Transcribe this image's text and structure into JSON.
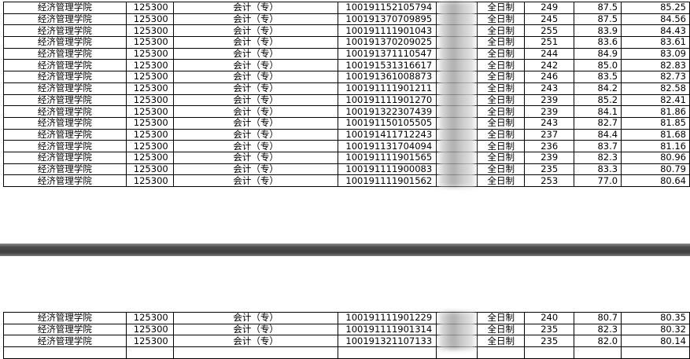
{
  "tables": [
    {
      "rows": [
        [
          "经济管理学院",
          "125300",
          "会计（专）",
          "100191152105794",
          "全日制",
          "249",
          "87.5",
          "85.25"
        ],
        [
          "经济管理学院",
          "125300",
          "会计（专）",
          "100191370709895",
          "全日制",
          "245",
          "87.5",
          "84.56"
        ],
        [
          "经济管理学院",
          "125300",
          "会计（专）",
          "100191111901043",
          "全日制",
          "255",
          "83.9",
          "84.43"
        ],
        [
          "经济管理学院",
          "125300",
          "会计（专）",
          "100191370209025",
          "全日制",
          "251",
          "83.6",
          "83.61"
        ],
        [
          "经济管理学院",
          "125300",
          "会计（专）",
          "100191371110547",
          "全日制",
          "244",
          "84.9",
          "83.09"
        ],
        [
          "经济管理学院",
          "125300",
          "会计（专）",
          "100191531316617",
          "全日制",
          "242",
          "85.0",
          "82.83"
        ],
        [
          "经济管理学院",
          "125300",
          "会计（专）",
          "100191361008873",
          "全日制",
          "246",
          "83.5",
          "82.73"
        ],
        [
          "经济管理学院",
          "125300",
          "会计（专）",
          "100191111901211",
          "全日制",
          "243",
          "84.2",
          "82.58"
        ],
        [
          "经济管理学院",
          "125300",
          "会计（专）",
          "100191111901270",
          "全日制",
          "239",
          "85.2",
          "82.41"
        ],
        [
          "经济管理学院",
          "125300",
          "会计（专）",
          "100191322307439",
          "全日制",
          "239",
          "84.1",
          "81.86"
        ],
        [
          "经济管理学院",
          "125300",
          "会计（专）",
          "100191150105505",
          "全日制",
          "243",
          "82.7",
          "81.85"
        ],
        [
          "经济管理学院",
          "125300",
          "会计（专）",
          "100191411712243",
          "全日制",
          "237",
          "84.4",
          "81.68"
        ],
        [
          "经济管理学院",
          "125300",
          "会计（专）",
          "100191131704094",
          "全日制",
          "236",
          "83.7",
          "81.16"
        ],
        [
          "经济管理学院",
          "125300",
          "会计（专）",
          "100191111901565",
          "全日制",
          "239",
          "82.3",
          "80.96"
        ],
        [
          "经济管理学院",
          "125300",
          "会计（专）",
          "100191111900083",
          "全日制",
          "235",
          "83.3",
          "80.79"
        ],
        [
          "经济管理学院",
          "125300",
          "会计（专）",
          "100191111901562",
          "全日制",
          "253",
          "77.0",
          "80.64"
        ]
      ]
    },
    {
      "rows": [
        [
          "经济管理学院",
          "125300",
          "会计（专）",
          "100191111901229",
          "全日制",
          "240",
          "80.7",
          "80.35"
        ],
        [
          "经济管理学院",
          "125300",
          "会计（专）",
          "100191111901314",
          "全日制",
          "235",
          "82.3",
          "80.32"
        ],
        [
          "经济管理学院",
          "125300",
          "会计（专）",
          "100191321107133",
          "全日制",
          "235",
          "82.0",
          "80.14"
        ]
      ]
    }
  ]
}
